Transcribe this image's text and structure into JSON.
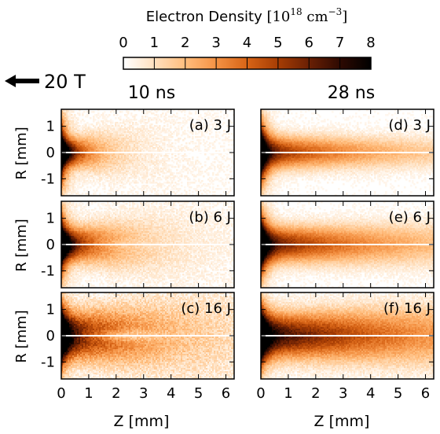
{
  "chart_data": {
    "type": "heatmap",
    "colorbar": {
      "label_text": "Electron Density ",
      "units": "[10^18 cm^-3]",
      "units_base": "[10",
      "units_exp": "18",
      "units_mid": " cm",
      "units_exp2": "−3",
      "units_end": "]",
      "range": [
        0,
        8
      ],
      "ticks": [
        "0",
        "1",
        "2",
        "3",
        "4",
        "5",
        "6",
        "7",
        "8"
      ],
      "colors": [
        "#ffffff",
        "#ffe0bf",
        "#ffbd7d",
        "#f49244",
        "#d76416",
        "#a63d04",
        "#6a2004",
        "#2e0a02",
        "#000000"
      ]
    },
    "field_label": "20 T",
    "columns": [
      {
        "title": "10 ns"
      },
      {
        "title": "28 ns"
      }
    ],
    "panels": [
      {
        "label": "(a) 3 J",
        "time": "10 ns",
        "energy": "3 J"
      },
      {
        "label": "(b) 6 J",
        "time": "10 ns",
        "energy": "6 J"
      },
      {
        "label": "(c) 16 J",
        "time": "10 ns",
        "energy": "16 J"
      },
      {
        "label": "(d) 3 J",
        "time": "28 ns",
        "energy": "3 J"
      },
      {
        "label": "(e) 6 J",
        "time": "28 ns",
        "energy": "6 J"
      },
      {
        "label": "(f) 16 J",
        "time": "28 ns",
        "energy": "16 J"
      }
    ],
    "xlabel": "Z [mm]",
    "ylabel": "R [mm]",
    "xlim": [
      0,
      6.3
    ],
    "ylim": [
      -1.65,
      1.65
    ],
    "xticks": [
      "0",
      "1",
      "2",
      "3",
      "4",
      "5",
      "6"
    ],
    "yticks": [
      "1",
      "0",
      "-1"
    ]
  }
}
